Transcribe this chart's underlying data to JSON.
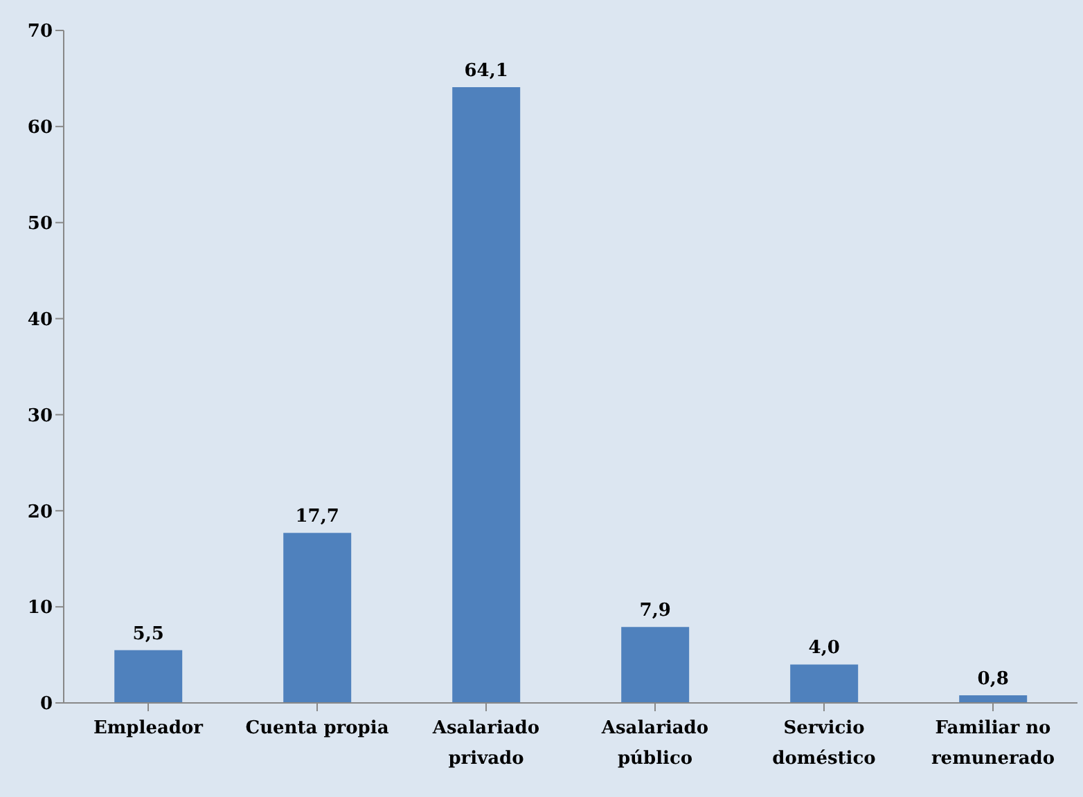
{
  "chart_data": {
    "type": "bar",
    "categories": [
      "Empleador",
      "Cuenta propia",
      "Asalariado privado",
      "Asalariado público",
      "Servicio doméstico",
      "Familiar no remunerado"
    ],
    "values": [
      5.5,
      17.7,
      64.1,
      7.9,
      4.0,
      0.8
    ],
    "value_labels": [
      "5,5",
      "17,7",
      "64,1",
      "7,9",
      "4,0",
      "0,8"
    ],
    "color": "#4f81bd",
    "ylim": [
      0,
      70
    ],
    "yticks": [
      0,
      10,
      20,
      30,
      40,
      50,
      60,
      70
    ],
    "grid": false,
    "legend": false
  }
}
